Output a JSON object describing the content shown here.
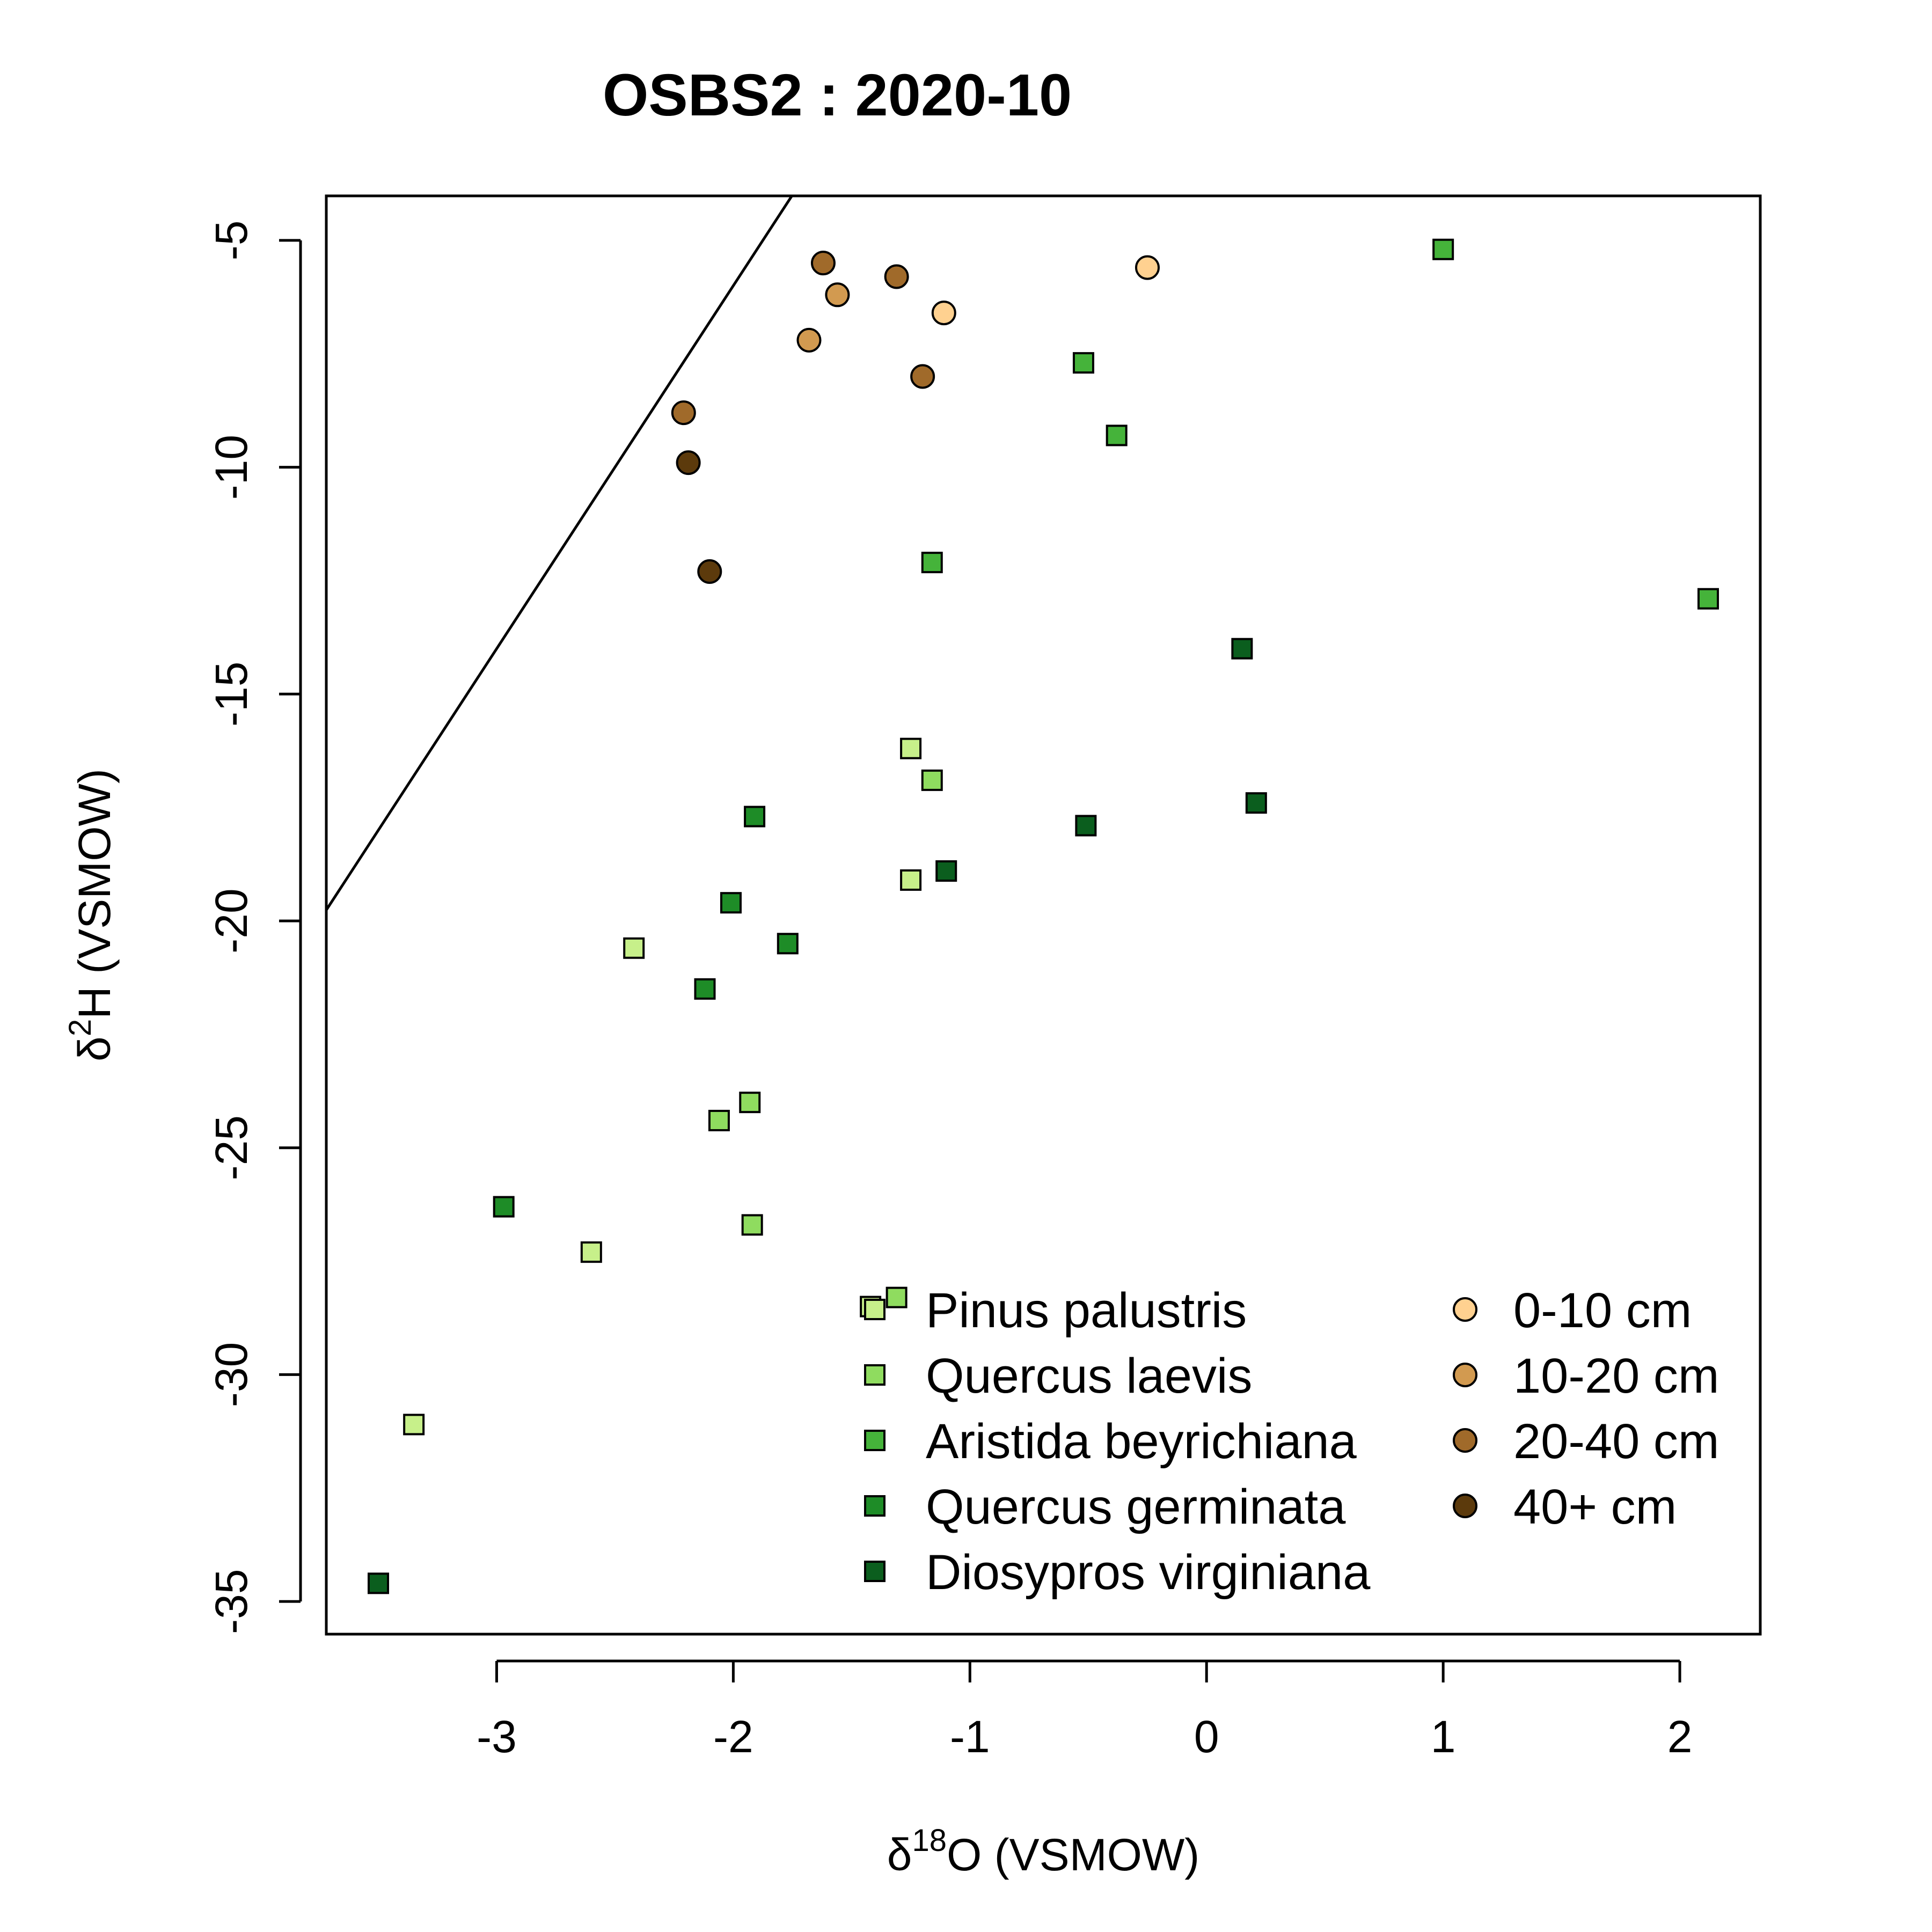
{
  "chart_data": {
    "type": "scatter",
    "title": "OSBS2 : 2020-10",
    "xlabel": {
      "prefix": "δ",
      "sup": "18",
      "rest": "O (VSMOW)"
    },
    "ylabel": {
      "prefix": "δ",
      "sup": "2",
      "rest": "H (VSMOW)"
    },
    "xlim": [
      -3.72,
      2.34
    ],
    "ylim": [
      -35.72,
      -4.02
    ],
    "xticks": [
      -3,
      -2,
      -1,
      0,
      1,
      2
    ],
    "yticks": [
      -35,
      -30,
      -25,
      -20,
      -15,
      -10,
      -5
    ],
    "grid": false,
    "reference_line": {
      "slope": 8,
      "intercept": 10
    },
    "legend": {
      "placement": "bottom-right",
      "species": [
        {
          "name": "Pinus palustris",
          "color": "#C7F08A"
        },
        {
          "name": "Quercus laevis",
          "color": "#8FDC5F"
        },
        {
          "name": "Aristida beyrichiana",
          "color": "#45B33A"
        },
        {
          "name": "Quercus germinata",
          "color": "#1E8C27"
        },
        {
          "name": "Diosypros virginiana",
          "color": "#0B5E1E"
        }
      ],
      "depths": [
        {
          "name": "0-10 cm",
          "color": "#FFD190"
        },
        {
          "name": "10-20 cm",
          "color": "#D29A50"
        },
        {
          "name": "20-40 cm",
          "color": "#A06A2A"
        },
        {
          "name": "40+ cm",
          "color": "#5C3A0C"
        }
      ]
    },
    "series": [
      {
        "name": "Pinus palustris",
        "marker": "square",
        "color": "#C7F08A",
        "points": [
          [
            -3.35,
            -31.1
          ],
          [
            -2.6,
            -27.3
          ],
          [
            -2.42,
            -20.6
          ],
          [
            -1.25,
            -19.1
          ],
          [
            -1.25,
            -16.2
          ],
          [
            -1.42,
            -28.5
          ]
        ]
      },
      {
        "name": "Quercus laevis",
        "marker": "square",
        "color": "#8FDC5F",
        "points": [
          [
            -2.06,
            -24.4
          ],
          [
            -1.93,
            -24.0
          ],
          [
            -1.92,
            -26.7
          ],
          [
            -1.16,
            -16.9
          ],
          [
            -1.31,
            -28.3
          ]
        ]
      },
      {
        "name": "Aristida beyrichiana",
        "marker": "square",
        "color": "#45B33A",
        "points": [
          [
            1.0,
            -5.2
          ],
          [
            2.12,
            -12.9
          ],
          [
            -0.52,
            -7.7
          ],
          [
            -0.38,
            -9.3
          ],
          [
            -1.16,
            -12.1
          ]
        ]
      },
      {
        "name": "Quercus germinata",
        "marker": "square",
        "color": "#1E8C27",
        "points": [
          [
            -2.97,
            -26.3
          ],
          [
            -2.12,
            -21.5
          ],
          [
            -2.01,
            -19.6
          ],
          [
            -1.91,
            -17.7
          ],
          [
            -1.77,
            -20.5
          ]
        ]
      },
      {
        "name": "Diosypros virginiana",
        "marker": "square",
        "color": "#0B5E1E",
        "points": [
          [
            -3.5,
            -34.6
          ],
          [
            -1.1,
            -18.9
          ],
          [
            -0.51,
            -17.9
          ],
          [
            0.15,
            -14.0
          ],
          [
            0.21,
            -17.4
          ]
        ]
      },
      {
        "name": "0-10 cm",
        "marker": "circle",
        "color": "#FFD190",
        "points": [
          [
            -0.25,
            -5.6
          ],
          [
            -1.11,
            -6.6
          ]
        ]
      },
      {
        "name": "10-20 cm",
        "marker": "circle",
        "color": "#D29A50",
        "points": [
          [
            -1.56,
            -6.2
          ],
          [
            -1.68,
            -7.2
          ]
        ]
      },
      {
        "name": "20-40 cm",
        "marker": "circle",
        "color": "#A06A2A",
        "points": [
          [
            -1.62,
            -5.5
          ],
          [
            -1.31,
            -5.8
          ],
          [
            -1.2,
            -8.0
          ],
          [
            -2.21,
            -8.8
          ]
        ]
      },
      {
        "name": "40+ cm",
        "marker": "circle",
        "color": "#5C3A0C",
        "points": [
          [
            -2.19,
            -9.9
          ],
          [
            -2.1,
            -12.3
          ]
        ]
      }
    ]
  }
}
